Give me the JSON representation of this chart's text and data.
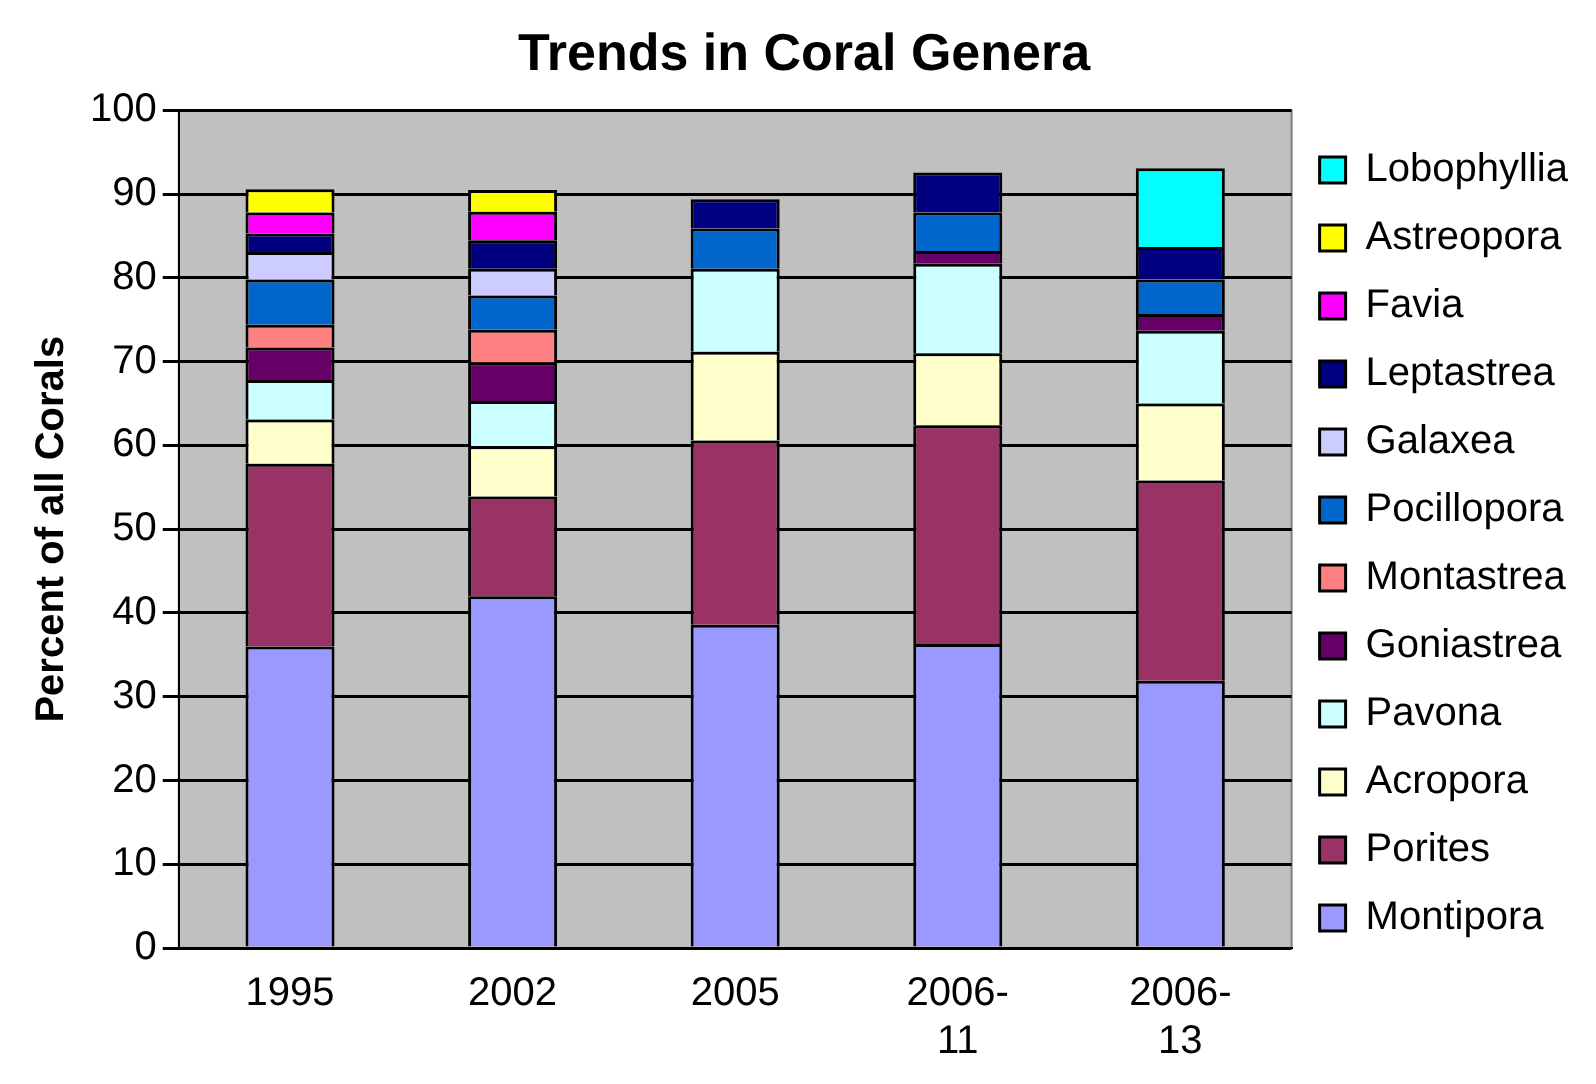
{
  "chart_data": {
    "type": "bar",
    "title": "Trends in Coral Genera",
    "ylabel": "Percent of all Corals",
    "stacked": true,
    "legend": "right",
    "grid": "y",
    "categories": [
      "1995",
      "2002",
      "2005",
      "2006-11",
      "2006-13"
    ],
    "ylim": [
      0,
      100
    ],
    "yticks": [
      0,
      10,
      20,
      30,
      40,
      50,
      60,
      70,
      80,
      90,
      100
    ],
    "series": [
      {
        "name": "Montipora",
        "color": "#9999ff",
        "values": [
          36,
          42,
          38.6,
          36.3,
          31.9
        ]
      },
      {
        "name": "Porites",
        "color": "#993366",
        "values": [
          21.8,
          11.9,
          22,
          26.1,
          23.9
        ]
      },
      {
        "name": "Acropora",
        "color": "#ffffcc",
        "values": [
          5.3,
          6,
          10.6,
          8.6,
          9.2
        ]
      },
      {
        "name": "Pavona",
        "color": "#ccffff",
        "values": [
          4.7,
          5.4,
          9.9,
          10.7,
          8.7
        ]
      },
      {
        "name": "Goniastrea",
        "color": "#660066",
        "values": [
          3.9,
          4.6,
          0,
          1.5,
          2
        ]
      },
      {
        "name": "Montastrea",
        "color": "#ff8080",
        "values": [
          2.7,
          3.9,
          0,
          0,
          0
        ]
      },
      {
        "name": "Pocillopora",
        "color": "#0066cc",
        "values": [
          5.4,
          4.1,
          4.8,
          4.6,
          4.1
        ]
      },
      {
        "name": "Galaxea",
        "color": "#ccccff",
        "values": [
          3.3,
          3.2,
          0,
          0,
          0
        ]
      },
      {
        "name": "Leptastrea",
        "color": "#000080",
        "values": [
          2.2,
          3.4,
          3.5,
          4.8,
          3.9
        ]
      },
      {
        "name": "Favia",
        "color": "#ff00ff",
        "values": [
          2.5,
          3.4,
          0,
          0,
          0
        ]
      },
      {
        "name": "Astreopora",
        "color": "#ffff00",
        "values": [
          2.8,
          2.6,
          0,
          0,
          0
        ]
      },
      {
        "name": "Lobophyllia",
        "color": "#00ffff",
        "values": [
          0,
          0,
          0,
          0,
          9.4
        ]
      }
    ]
  }
}
